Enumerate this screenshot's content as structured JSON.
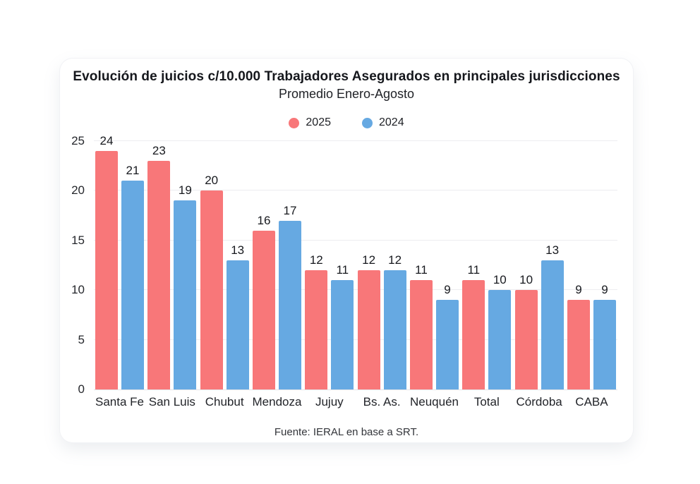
{
  "chart_data": {
    "type": "bar",
    "title": "Evolución de juicios c/10.000 Trabajadores Asegurados en principales jurisdicciones",
    "subtitle": "Promedio Enero-Agosto",
    "source": "Fuente: IERAL en base a SRT.",
    "categories": [
      "Santa Fe",
      "San Luis",
      "Chubut",
      "Mendoza",
      "Jujuy",
      "Bs. As.",
      "Neuquén",
      "Total",
      "Córdoba",
      "CABA"
    ],
    "series": [
      {
        "name": "2025",
        "color": "#f87779",
        "values": [
          24,
          23,
          20,
          16,
          12,
          12,
          11,
          11,
          10,
          9
        ]
      },
      {
        "name": "2024",
        "color": "#66a9e2",
        "values": [
          21,
          19,
          13,
          17,
          11,
          12,
          9,
          10,
          13,
          9
        ]
      }
    ],
    "xlabel": "",
    "ylabel": "",
    "ylim": [
      0,
      25
    ],
    "yticks": [
      0,
      5,
      10,
      15,
      20,
      25
    ],
    "grid": true,
    "legend_position": "top-center",
    "value_labels": true,
    "colors": {
      "grid": "#ededf0",
      "baseline": "#e2e3e7",
      "text": "#17191e",
      "card_background": "#ffffff"
    }
  }
}
